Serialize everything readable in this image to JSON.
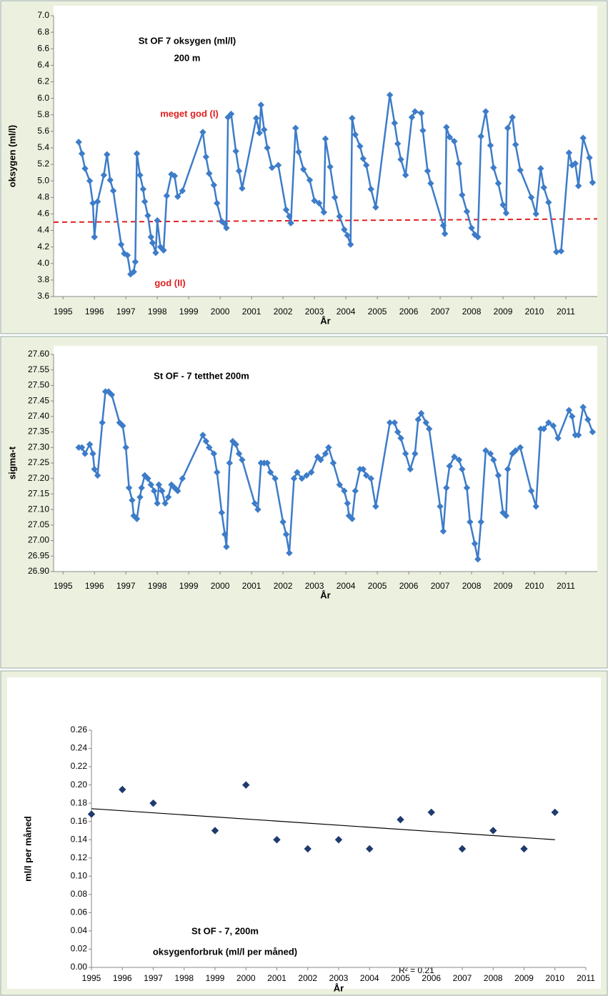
{
  "chart_data": [
    {
      "type": "line",
      "title": "St OF 7 oksygen (ml/l)",
      "subtitle": "200 m",
      "xlabel": "År",
      "ylabel": "oksygen (ml/l)",
      "color": "#3d7cc9",
      "x": [
        1995.5,
        1995.6,
        1995.7,
        1995.85,
        1995.95,
        1996.0,
        1996.1,
        1996.3,
        1996.4,
        1996.5,
        1996.6,
        1996.85,
        1996.95,
        1997.05,
        1997.15,
        1997.25,
        1997.3,
        1997.35,
        1997.45,
        1997.55,
        1997.6,
        1997.7,
        1997.8,
        1997.85,
        1997.95,
        1998.0,
        1998.1,
        1998.2,
        1998.3,
        1998.45,
        1998.55,
        1998.65,
        1998.8,
        1999.45,
        1999.55,
        1999.65,
        1999.8,
        1999.9,
        2000.05,
        2000.15,
        2000.2,
        2000.25,
        2000.35,
        2000.5,
        2000.6,
        2000.7,
        2001.15,
        2001.25,
        2001.3,
        2001.4,
        2001.5,
        2001.65,
        2001.85,
        2002.1,
        2002.2,
        2002.25,
        2002.4,
        2002.5,
        2002.65,
        2002.85,
        2003.0,
        2003.15,
        2003.3,
        2003.35,
        2003.5,
        2003.65,
        2003.8,
        2003.95,
        2004.05,
        2004.15,
        2004.2,
        2004.3,
        2004.45,
        2004.55,
        2004.65,
        2004.8,
        2004.95,
        2005.4,
        2005.55,
        2005.65,
        2005.75,
        2005.9,
        2006.1,
        2006.2,
        2006.4,
        2006.45,
        2006.6,
        2006.7,
        2007.1,
        2007.15,
        2007.2,
        2007.3,
        2007.45,
        2007.6,
        2007.7,
        2007.85,
        2008.0,
        2008.1,
        2008.2,
        2008.3,
        2008.45,
        2008.6,
        2008.7,
        2008.85,
        2009.0,
        2009.1,
        2009.15,
        2009.3,
        2009.4,
        2009.55,
        2009.9,
        2010.05,
        2010.2,
        2010.3,
        2010.45,
        2010.7,
        2010.85,
        2011.1,
        2011.2,
        2011.3,
        2011.4,
        2011.55,
        2011.75,
        2011.85
      ],
      "values": [
        5.47,
        5.33,
        5.15,
        5.0,
        4.73,
        4.32,
        4.75,
        5.07,
        5.32,
        5.01,
        4.88,
        4.23,
        4.12,
        4.1,
        3.87,
        3.9,
        4.02,
        5.33,
        5.07,
        4.9,
        4.75,
        4.58,
        4.32,
        4.25,
        4.13,
        4.52,
        4.2,
        4.16,
        4.82,
        5.08,
        5.06,
        4.81,
        4.88,
        5.59,
        5.29,
        5.09,
        4.95,
        4.73,
        4.51,
        4.48,
        4.43,
        5.77,
        5.81,
        5.36,
        5.12,
        4.91,
        5.76,
        5.58,
        5.92,
        5.62,
        5.4,
        5.16,
        5.19,
        4.65,
        4.57,
        4.49,
        5.64,
        5.35,
        5.14,
        5.01,
        4.76,
        4.73,
        4.62,
        5.51,
        5.17,
        4.8,
        4.57,
        4.41,
        4.34,
        4.23,
        5.76,
        5.56,
        5.42,
        5.27,
        5.19,
        4.9,
        4.68,
        6.04,
        5.7,
        5.45,
        5.26,
        5.07,
        5.77,
        5.84,
        5.82,
        5.61,
        5.12,
        4.97,
        4.46,
        4.36,
        5.65,
        5.53,
        5.48,
        5.21,
        4.83,
        4.63,
        4.43,
        4.35,
        4.32,
        5.54,
        5.84,
        5.43,
        5.16,
        4.97,
        4.71,
        4.61,
        5.64,
        5.77,
        5.44,
        5.13,
        4.8,
        4.6,
        5.15,
        4.92,
        4.74,
        4.14,
        4.15,
        5.34,
        5.19,
        5.21,
        4.94,
        5.52,
        5.28,
        4.98
      ],
      "xlim": [
        1994.7,
        2012
      ],
      "xticks": [
        1995,
        1996,
        1997,
        1998,
        1999,
        2000,
        2001,
        2002,
        2003,
        2004,
        2005,
        2006,
        2007,
        2008,
        2009,
        2010,
        2011
      ],
      "ylim": [
        3.6,
        7.0
      ],
      "yticks": [
        3.6,
        3.8,
        {
          "value": 4.0,
          "label": "4.0"
        },
        4.2,
        4.4,
        4.6,
        4.8,
        {
          "value": 5.0,
          "label": "5.0"
        },
        5.2,
        5.4,
        5.6,
        5.8,
        {
          "value": 6.0,
          "label": "6.0"
        },
        6.2,
        6.4,
        6.6,
        6.8,
        {
          "value": 7.0,
          "label": "7.0"
        }
      ],
      "reference_line": {
        "x": [
          1994.7,
          2012
        ],
        "y": [
          4.5,
          4.54
        ],
        "color": "#e02020"
      },
      "annotations": [
        "meget god (I)",
        "god (II)"
      ]
    },
    {
      "type": "line",
      "title": "St OF - 7 tetthet  200m",
      "xlabel": "År",
      "ylabel": "sigma-t",
      "color": "#3d7cc9",
      "x": [
        1995.5,
        1995.6,
        1995.7,
        1995.85,
        1995.95,
        1996.0,
        1996.1,
        1996.25,
        1996.35,
        1996.45,
        1996.55,
        1996.8,
        1996.9,
        1997.0,
        1997.1,
        1997.2,
        1997.25,
        1997.35,
        1997.45,
        1997.5,
        1997.6,
        1997.7,
        1997.8,
        1997.9,
        1998.0,
        1998.05,
        1998.15,
        1998.25,
        1998.35,
        1998.45,
        1998.55,
        1998.65,
        1998.8,
        1999.45,
        1999.55,
        1999.65,
        1999.8,
        1999.9,
        2000.05,
        2000.15,
        2000.2,
        2000.3,
        2000.4,
        2000.5,
        2000.6,
        2000.7,
        2001.1,
        2001.2,
        2001.3,
        2001.4,
        2001.5,
        2001.6,
        2001.75,
        2002.0,
        2002.1,
        2002.2,
        2002.35,
        2002.45,
        2002.6,
        2002.75,
        2002.9,
        2003.1,
        2003.2,
        2003.35,
        2003.45,
        2003.6,
        2003.8,
        2003.95,
        2004.05,
        2004.1,
        2004.2,
        2004.3,
        2004.45,
        2004.55,
        2004.65,
        2004.8,
        2004.95,
        2005.4,
        2005.55,
        2005.65,
        2005.75,
        2005.9,
        2006.05,
        2006.2,
        2006.3,
        2006.4,
        2006.55,
        2006.65,
        2007.0,
        2007.1,
        2007.2,
        2007.3,
        2007.45,
        2007.6,
        2007.7,
        2007.85,
        2007.95,
        2008.1,
        2008.2,
        2008.3,
        2008.45,
        2008.6,
        2008.7,
        2008.85,
        2009.0,
        2009.1,
        2009.15,
        2009.3,
        2009.4,
        2009.55,
        2009.9,
        2010.05,
        2010.2,
        2010.3,
        2010.45,
        2010.6,
        2010.75,
        2011.1,
        2011.2,
        2011.3,
        2011.4,
        2011.55,
        2011.7,
        2011.85
      ],
      "values": [
        27.3,
        27.3,
        27.28,
        27.31,
        27.28,
        27.23,
        27.21,
        27.38,
        27.48,
        27.48,
        27.47,
        27.38,
        27.37,
        27.3,
        27.17,
        27.13,
        27.08,
        27.07,
        27.14,
        27.17,
        27.21,
        27.2,
        27.18,
        27.16,
        27.12,
        27.18,
        27.16,
        27.12,
        27.14,
        27.18,
        27.17,
        27.16,
        27.2,
        27.34,
        27.32,
        27.3,
        27.28,
        27.22,
        27.09,
        27.02,
        26.98,
        27.25,
        27.32,
        27.31,
        27.28,
        27.26,
        27.12,
        27.1,
        27.25,
        27.25,
        27.25,
        27.22,
        27.2,
        27.06,
        27.02,
        26.96,
        27.2,
        27.22,
        27.2,
        27.21,
        27.22,
        27.27,
        27.26,
        27.28,
        27.3,
        27.25,
        27.18,
        27.16,
        27.12,
        27.08,
        27.07,
        27.16,
        27.23,
        27.23,
        27.21,
        27.2,
        27.11,
        27.38,
        27.38,
        27.35,
        27.33,
        27.28,
        27.23,
        27.28,
        27.39,
        27.41,
        27.38,
        27.36,
        27.11,
        27.03,
        27.17,
        27.24,
        27.27,
        27.26,
        27.23,
        27.17,
        27.06,
        26.99,
        26.94,
        27.06,
        27.29,
        27.28,
        27.26,
        27.21,
        27.09,
        27.08,
        27.23,
        27.28,
        27.29,
        27.3,
        27.16,
        27.11,
        27.36,
        27.36,
        27.38,
        27.37,
        27.33,
        27.42,
        27.4,
        27.34,
        27.34,
        27.43,
        27.39,
        27.35
      ],
      "xlim": [
        1994.7,
        2012
      ],
      "xticks": [
        1995,
        1996,
        1997,
        1998,
        1999,
        2000,
        2001,
        2002,
        2003,
        2004,
        2005,
        2006,
        2007,
        2008,
        2009,
        2010,
        2011
      ],
      "ylim": [
        26.9,
        27.6
      ],
      "yticks": [
        {
          "value": 26.9,
          "label": "26.90"
        },
        26.95,
        {
          "value": 27.0,
          "label": "27.00"
        },
        27.05,
        {
          "value": 27.1,
          "label": "27.10"
        },
        27.15,
        {
          "value": 27.2,
          "label": "27.20"
        },
        27.25,
        {
          "value": 27.3,
          "label": "27.30"
        },
        27.35,
        {
          "value": 27.4,
          "label": "27.40"
        },
        27.45,
        {
          "value": 27.5,
          "label": "27.50"
        },
        27.55,
        {
          "value": 27.6,
          "label": "27.60"
        }
      ]
    },
    {
      "type": "scatter",
      "title": "St OF - 7,  200m",
      "subtitle": "oksygenforbruk (ml/l per måned)",
      "xlabel": "År",
      "ylabel": "ml/l per måned",
      "color": "#1f3a6e",
      "x": [
        1995,
        1996,
        1997,
        1999,
        2000,
        2001,
        2002,
        2003,
        2004,
        2005,
        2006,
        2007,
        2008,
        2009,
        2010
      ],
      "values": [
        0.168,
        0.195,
        0.18,
        0.15,
        0.2,
        0.14,
        0.13,
        0.14,
        0.13,
        0.162,
        0.17,
        0.13,
        0.15,
        0.13,
        0.17
      ],
      "xlim": [
        1995,
        2011
      ],
      "xticks": [
        1995,
        1996,
        1997,
        1998,
        1999,
        2000,
        2001,
        2002,
        2003,
        2004,
        2005,
        2006,
        2007,
        2008,
        2009,
        2010,
        2011
      ],
      "ylim": [
        0,
        0.26
      ],
      "yticks": [
        {
          "value": 0,
          "label": "0.00"
        },
        0.02,
        0.04,
        0.06,
        0.08,
        {
          "value": 0.1,
          "label": "0.10"
        },
        0.12,
        0.14,
        0.16,
        0.18,
        {
          "value": 0.2,
          "label": "0.20"
        },
        0.22,
        0.24,
        0.26
      ],
      "trendline": {
        "x": [
          1995,
          2010
        ],
        "y": [
          0.174,
          0.14
        ],
        "color": "#000000"
      },
      "annotations": [
        "R² = 0.21"
      ]
    }
  ]
}
